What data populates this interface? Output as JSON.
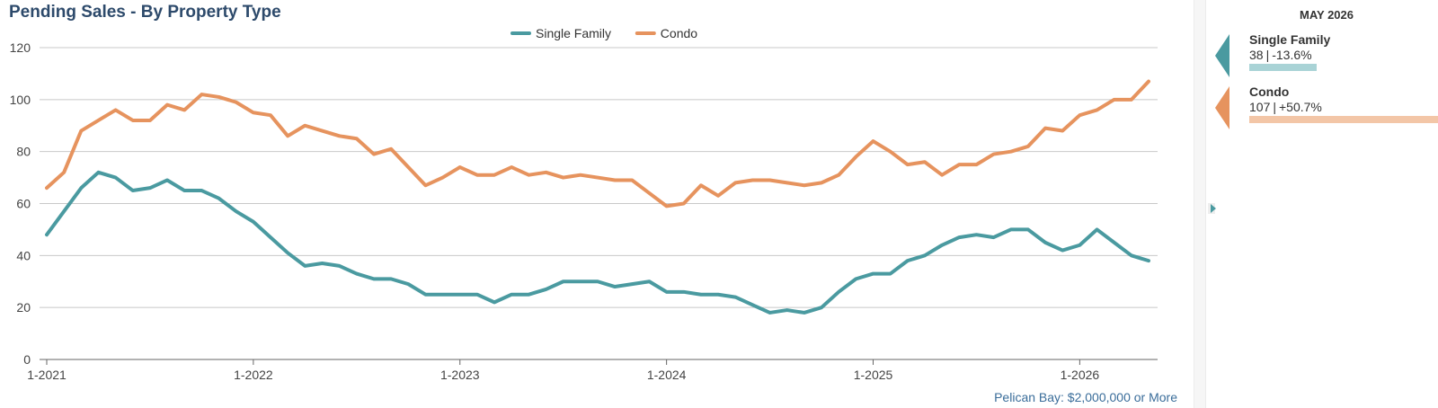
{
  "title": "Pending Sales - By Property Type",
  "footer": "Pelican Bay: $2,000,000 or More",
  "colors": {
    "single_family": "#4a9aa0",
    "condo": "#e6935e",
    "grid": "#c8c8c8",
    "axis": "#555555"
  },
  "chart_data": {
    "type": "line",
    "title": "Pending Sales - By Property Type",
    "xlabel": "",
    "ylabel": "",
    "ylim": [
      0,
      120
    ],
    "yticks": [
      0,
      20,
      40,
      60,
      80,
      100,
      120
    ],
    "x_start": "1-2021",
    "x_tick_labels": [
      "1-2021",
      "1-2022",
      "1-2023",
      "1-2024",
      "1-2025",
      "1-2026"
    ],
    "grid": true,
    "legend_position": "top-center",
    "series": [
      {
        "name": "Single Family",
        "color": "#4a9aa0",
        "values": [
          48,
          57,
          66,
          72,
          70,
          65,
          66,
          69,
          65,
          65,
          62,
          57,
          53,
          47,
          41,
          36,
          37,
          36,
          33,
          31,
          31,
          29,
          25,
          25,
          25,
          25,
          22,
          25,
          25,
          27,
          30,
          30,
          30,
          28,
          29,
          30,
          26,
          26,
          25,
          25,
          24,
          21,
          18,
          19,
          18,
          20,
          26,
          31,
          33,
          33,
          38,
          40,
          44,
          47,
          48,
          47,
          50,
          50,
          45,
          42,
          44,
          50,
          45,
          40,
          38
        ]
      },
      {
        "name": "Condo",
        "color": "#e6935e",
        "values": [
          66,
          72,
          88,
          92,
          96,
          92,
          92,
          98,
          96,
          102,
          101,
          99,
          95,
          94,
          86,
          90,
          88,
          86,
          85,
          79,
          81,
          74,
          67,
          70,
          74,
          71,
          71,
          74,
          71,
          72,
          70,
          71,
          70,
          69,
          69,
          64,
          59,
          60,
          67,
          63,
          68,
          69,
          69,
          68,
          67,
          68,
          71,
          78,
          84,
          80,
          75,
          76,
          71,
          75,
          75,
          79,
          80,
          82,
          89,
          88,
          94,
          96,
          100,
          100,
          107
        ]
      }
    ]
  },
  "panel": {
    "date": "MAY 2026",
    "items": [
      {
        "name": "Single Family",
        "value": "38",
        "change": "-13.6%",
        "color": "#4a9aa0",
        "bar_color": "#a9d3d6",
        "level": 38
      },
      {
        "name": "Condo",
        "value": "107",
        "change": "+50.7%",
        "color": "#e6935e",
        "bar_color": "#f3c6a7",
        "level": 107
      }
    ]
  }
}
